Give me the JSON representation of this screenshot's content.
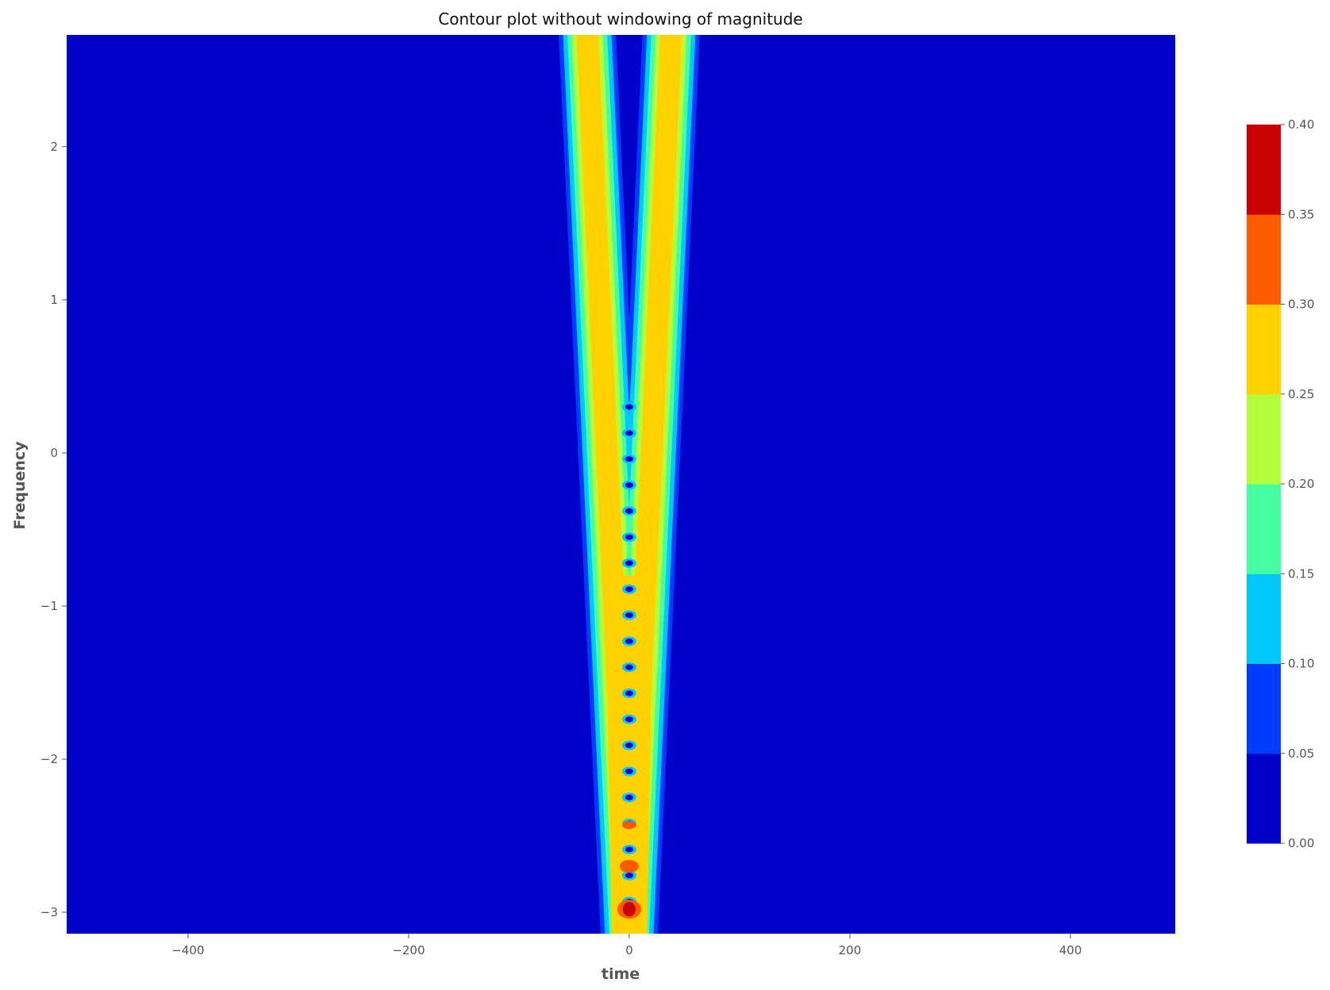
{
  "chart_data": {
    "type": "contourf",
    "title": "Contour plot without windowing of magnitude",
    "xlabel": "time",
    "ylabel": "Frequency",
    "xlim": [
      -510,
      495
    ],
    "ylim": [
      -3.14,
      2.73
    ],
    "xticks": [
      {
        "value": -400,
        "label": "−400"
      },
      {
        "value": -200,
        "label": "−200"
      },
      {
        "value": 0,
        "label": "0"
      },
      {
        "value": 200,
        "label": "200"
      },
      {
        "value": 400,
        "label": "400"
      }
    ],
    "yticks": [
      {
        "value": -3,
        "label": "−3"
      },
      {
        "value": -2,
        "label": "−2"
      },
      {
        "value": -1,
        "label": "−1"
      },
      {
        "value": 0,
        "label": "0"
      },
      {
        "value": 1,
        "label": "1"
      },
      {
        "value": 2,
        "label": "2"
      }
    ],
    "grid": false,
    "colorbar": {
      "range": [
        0.0,
        0.4
      ],
      "levels": [
        0.0,
        0.05,
        0.1,
        0.15,
        0.2,
        0.25,
        0.3,
        0.35,
        0.4
      ],
      "tick_labels": [
        "0.00",
        "0.05",
        "0.10",
        "0.15",
        "0.20",
        "0.25",
        "0.30",
        "0.35",
        "0.40"
      ],
      "colors": [
        "#0000c8",
        "#003cff",
        "#00c8ff",
        "#46ffa0",
        "#b4ff3c",
        "#ffd200",
        "#ff5a00",
        "#c80000"
      ]
    },
    "features": {
      "ridge_left_time_at_top": -38,
      "ridge_right_time_at_top": 38,
      "ridge_time_at_bottom": 0,
      "ridge_peak_magnitude": 0.3,
      "peak_time": 0,
      "peak_frequency": -2.98,
      "peak_magnitude": 0.38
    }
  }
}
